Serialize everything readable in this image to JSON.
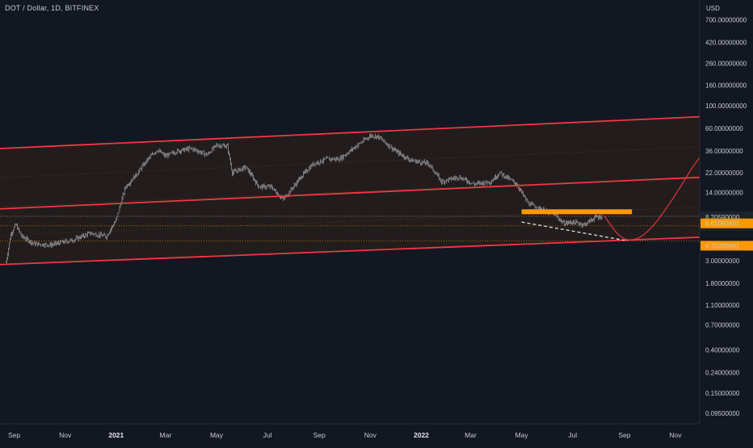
{
  "symbol_title": "DOT / Dollar, 1D, BITFINEX",
  "currency": "USD",
  "price_tags": [
    {
      "value": "8.20590000",
      "sub": "08:41:13",
      "role": "last-price"
    },
    {
      "value": "6.61082401",
      "role": "level"
    },
    {
      "value": "4.70289981",
      "role": "level"
    }
  ],
  "colors": {
    "background": "#131722",
    "candles": "#b2b5be",
    "channel_lines": "#f23645",
    "channel_fill": "#2a2119",
    "resistance_box": "#ff9800",
    "projection_curve": "#e03340",
    "support_dashes": "#d1d4dc",
    "level_dotted": "#ff9800",
    "last_price_dotted": "#9598a1"
  },
  "chart_data": {
    "type": "candlestick",
    "title": "DOT / Dollar, 1D, BITFINEX",
    "y_scale": "log",
    "y_unit": "USD",
    "y_ticks": [
      "700.00000000",
      "420.00000000",
      "260.00000000",
      "160.00000000",
      "100.00000000",
      "60.00000000",
      "36.00000000",
      "22.00000000",
      "14.00000000",
      "8.20590000",
      "6.61082401",
      "4.70289981",
      "3.00000000",
      "1.80000000",
      "1.10000000",
      "0.70000000",
      "0.40000000",
      "0.24000000",
      "0.15000000",
      "0.09500000"
    ],
    "x_ticks": [
      {
        "label": "Sep",
        "date": "2020-09-01",
        "year": false
      },
      {
        "label": "Nov",
        "date": "2020-11-01",
        "year": false
      },
      {
        "label": "2021",
        "date": "2021-01-01",
        "year": true
      },
      {
        "label": "Mar",
        "date": "2021-03-01",
        "year": false
      },
      {
        "label": "May",
        "date": "2021-05-01",
        "year": false
      },
      {
        "label": "Jul",
        "date": "2021-07-01",
        "year": false
      },
      {
        "label": "Sep",
        "date": "2021-09-01",
        "year": false
      },
      {
        "label": "Nov",
        "date": "2021-11-01",
        "year": false
      },
      {
        "label": "2022",
        "date": "2022-01-01",
        "year": true
      },
      {
        "label": "Mar",
        "date": "2022-03-01",
        "year": false
      },
      {
        "label": "May",
        "date": "2022-05-01",
        "year": false
      },
      {
        "label": "Jul",
        "date": "2022-07-01",
        "year": false
      },
      {
        "label": "Sep",
        "date": "2022-09-01",
        "year": false
      },
      {
        "label": "Nov",
        "date": "2022-11-01",
        "year": false
      }
    ],
    "price_path": [
      [
        "2020-08-22",
        2.9
      ],
      [
        "2020-08-28",
        5.5
      ],
      [
        "2020-09-03",
        6.8
      ],
      [
        "2020-09-10",
        5.2
      ],
      [
        "2020-09-25",
        4.4
      ],
      [
        "2020-10-15",
        4.3
      ],
      [
        "2020-11-10",
        4.8
      ],
      [
        "2020-12-01",
        5.6
      ],
      [
        "2020-12-20",
        5.2
      ],
      [
        "2021-01-01",
        7.5
      ],
      [
        "2021-01-05",
        10.0
      ],
      [
        "2021-01-12",
        16.0
      ],
      [
        "2021-01-25",
        21.0
      ],
      [
        "2021-02-08",
        30.0
      ],
      [
        "2021-02-19",
        37.0
      ],
      [
        "2021-03-01",
        32.0
      ],
      [
        "2021-03-15",
        36.0
      ],
      [
        "2021-04-01",
        38.0
      ],
      [
        "2021-04-20",
        33.0
      ],
      [
        "2021-05-01",
        41.0
      ],
      [
        "2021-05-14",
        40.0
      ],
      [
        "2021-05-20",
        22.0
      ],
      [
        "2021-06-05",
        25.0
      ],
      [
        "2021-06-21",
        16.0
      ],
      [
        "2021-07-05",
        16.0
      ],
      [
        "2021-07-20",
        12.0
      ],
      [
        "2021-08-10",
        20.0
      ],
      [
        "2021-08-25",
        27.0
      ],
      [
        "2021-09-10",
        30.0
      ],
      [
        "2021-09-25",
        30.0
      ],
      [
        "2021-10-15",
        40.0
      ],
      [
        "2021-11-01",
        51.0
      ],
      [
        "2021-11-10",
        50.0
      ],
      [
        "2021-12-01",
        36.0
      ],
      [
        "2021-12-20",
        29.0
      ],
      [
        "2022-01-10",
        27.0
      ],
      [
        "2022-01-25",
        18.0
      ],
      [
        "2022-02-15",
        20.0
      ],
      [
        "2022-03-05",
        17.0
      ],
      [
        "2022-03-25",
        18.0
      ],
      [
        "2022-04-05",
        22.0
      ],
      [
        "2022-04-25",
        17.0
      ],
      [
        "2022-05-09",
        11.0
      ],
      [
        "2022-05-25",
        9.5
      ],
      [
        "2022-06-10",
        8.5
      ],
      [
        "2022-06-20",
        7.0
      ],
      [
        "2022-07-01",
        7.2
      ],
      [
        "2022-07-15",
        6.8
      ],
      [
        "2022-07-28",
        8.0
      ],
      [
        "2022-08-05",
        8.2
      ]
    ],
    "channel_lines": [
      {
        "name": "upper",
        "from": [
          "2020-08-15",
          38
        ],
        "to": [
          "2022-11-30",
          78
        ]
      },
      {
        "name": "middle",
        "from": [
          "2020-08-15",
          9.7
        ],
        "to": [
          "2022-11-30",
          19.8
        ]
      },
      {
        "name": "lower",
        "from": [
          "2020-08-15",
          2.75
        ],
        "to": [
          "2022-11-30",
          5.1
        ]
      }
    ],
    "levels": [
      8.2059,
      6.61082401,
      4.70289981
    ],
    "resistance_zone": {
      "from": "2022-05-01",
      "to": "2022-09-10",
      "low": 8.6,
      "high": 9.6
    },
    "support_trendline": {
      "from": [
        "2022-05-01",
        7.2
      ],
      "to": [
        "2022-09-05",
        4.7
      ]
    },
    "projection_curve": [
      [
        "2022-08-08",
        8.3
      ],
      [
        "2022-08-15",
        6.8
      ],
      [
        "2022-08-25",
        5.3
      ],
      [
        "2022-09-05",
        4.72
      ],
      [
        "2022-09-20",
        5.0
      ],
      [
        "2022-10-05",
        6.5
      ],
      [
        "2022-10-20",
        9.5
      ],
      [
        "2022-11-05",
        15.0
      ],
      [
        "2022-11-20",
        24.0
      ],
      [
        "2022-11-30",
        31.0
      ]
    ]
  }
}
